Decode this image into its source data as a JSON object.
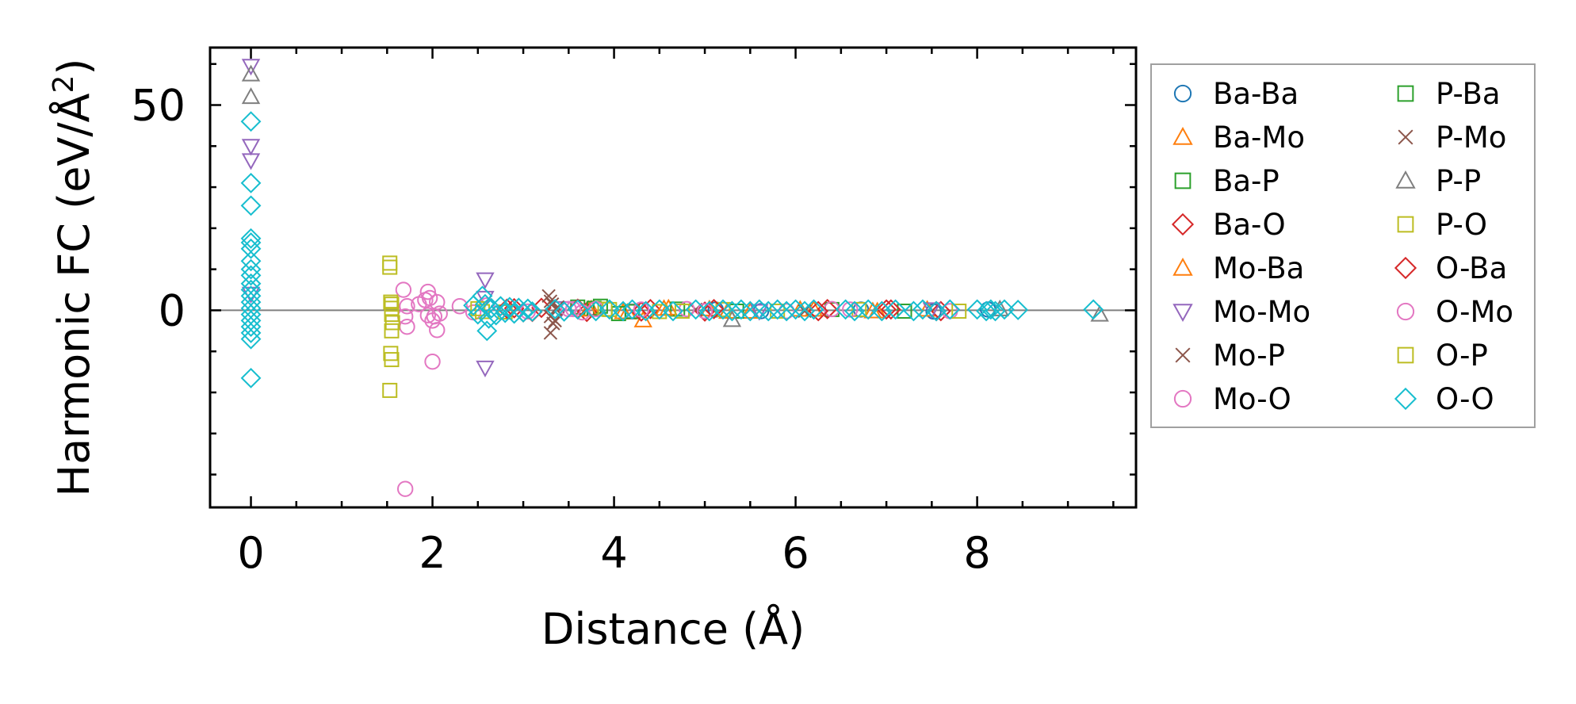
{
  "chart_data": {
    "type": "scatter",
    "title": "",
    "xlabel": "Distance (Å)",
    "ylabel_main": "Harmonic FC (eV/Å",
    "ylabel_sup": "2",
    "ylabel_close": ")",
    "xlim": [
      -0.45,
      9.75
    ],
    "ylim": [
      -48,
      64
    ],
    "x_ticks": [
      0,
      2,
      4,
      6,
      8
    ],
    "x_tick_labels": [
      "0",
      "2",
      "4",
      "6",
      "8"
    ],
    "y_ticks": [
      0,
      50
    ],
    "y_tick_labels": [
      "0",
      "50"
    ],
    "zero_line": true,
    "grid": false,
    "legend_position": "outside-right",
    "series": [
      {
        "name": "Ba-Ba",
        "marker": "circle",
        "color": "#1f77b4",
        "points": [
          [
            5.12,
            0.2
          ],
          [
            5.62,
            -0.2
          ],
          [
            6.72,
            0.2
          ],
          [
            7.52,
            -0.3
          ],
          [
            8.12,
            0.2
          ]
        ]
      },
      {
        "name": "Ba-Mo",
        "marker": "triangle-up",
        "color": "#ff7f0e",
        "points": [
          [
            3.75,
            0.3
          ],
          [
            4.1,
            -0.4
          ],
          [
            4.32,
            -2.4
          ],
          [
            4.6,
            0.5
          ],
          [
            5.05,
            0.3
          ],
          [
            5.5,
            -0.3
          ],
          [
            6.2,
            0.2
          ],
          [
            6.9,
            -0.2
          ],
          [
            7.45,
            0.2
          ]
        ]
      },
      {
        "name": "Ba-P",
        "marker": "square",
        "color": "#2ca02c",
        "points": [
          [
            3.6,
            0.8
          ],
          [
            3.85,
            1.0
          ],
          [
            4.05,
            -0.8
          ],
          [
            4.7,
            0.3
          ],
          [
            5.35,
            -0.2
          ],
          [
            6.4,
            0.2
          ],
          [
            7.2,
            -0.2
          ]
        ]
      },
      {
        "name": "Ba-O",
        "marker": "diamond",
        "color": "#d62728",
        "points": [
          [
            2.9,
            0.5
          ],
          [
            3.0,
            -0.5
          ],
          [
            3.2,
            0.6
          ],
          [
            3.7,
            -0.4
          ],
          [
            4.4,
            0.3
          ],
          [
            5.0,
            -0.3
          ],
          [
            6.35,
            0.3
          ],
          [
            7.0,
            0.2
          ],
          [
            7.6,
            -0.2
          ]
        ]
      },
      {
        "name": "Mo-Ba",
        "marker": "triangle-up",
        "color": "#ff7f0e",
        "points": [
          [
            3.72,
            0.2
          ],
          [
            4.15,
            -0.5
          ],
          [
            4.55,
            0.4
          ],
          [
            5.25,
            -0.3
          ],
          [
            6.05,
            0.2
          ],
          [
            6.85,
            -0.2
          ]
        ]
      },
      {
        "name": "Mo-Mo",
        "marker": "triangle-down",
        "color": "#9467bd",
        "points": [
          [
            0,
            59.5
          ],
          [
            0,
            40
          ],
          [
            0,
            36.5
          ],
          [
            0,
            4
          ],
          [
            2.58,
            7.5
          ],
          [
            2.58,
            3
          ],
          [
            2.58,
            -14
          ],
          [
            3.42,
            0.5
          ],
          [
            5.6,
            -0.2
          ],
          [
            7.5,
            0.2
          ]
        ]
      },
      {
        "name": "Mo-P",
        "marker": "x",
        "color": "#8c564b",
        "points": [
          [
            3.28,
            3.5
          ],
          [
            3.3,
            -5.5
          ],
          [
            3.32,
            1.5
          ],
          [
            3.35,
            -2.5
          ],
          [
            3.38,
            0.8
          ],
          [
            3.3,
            -1.5
          ],
          [
            4.9,
            0.2
          ],
          [
            6.1,
            -0.2
          ]
        ]
      },
      {
        "name": "Mo-O",
        "marker": "circle",
        "color": "#e377c2",
        "points": [
          [
            1.68,
            5
          ],
          [
            1.7,
            -1.5
          ],
          [
            1.72,
            -4
          ],
          [
            1.85,
            1.5
          ],
          [
            1.95,
            4.5
          ],
          [
            1.97,
            3
          ],
          [
            2.0,
            -12.5
          ],
          [
            2.0,
            -2.5
          ],
          [
            1.95,
            -1.2
          ],
          [
            2.05,
            2
          ],
          [
            2.05,
            -4.8
          ],
          [
            2.08,
            -0.8
          ],
          [
            2.3,
            1
          ],
          [
            2.45,
            -0.5
          ],
          [
            2.6,
            1.2
          ],
          [
            3.05,
            -0.3
          ],
          [
            3.55,
            0.3
          ],
          [
            4.2,
            -0.3
          ],
          [
            4.8,
            0.3
          ],
          [
            5.9,
            -0.2
          ],
          [
            6.4,
            0.3
          ],
          [
            7.7,
            -0.2
          ],
          [
            1.7,
            -43.5
          ]
        ]
      },
      {
        "name": "P-Ba",
        "marker": "square",
        "color": "#2ca02c",
        "points": [
          [
            3.78,
            0.5
          ],
          [
            4.2,
            -0.3
          ]
        ]
      },
      {
        "name": "P-Mo",
        "marker": "x",
        "color": "#8c564b",
        "points": [
          [
            3.3,
            2.2
          ],
          [
            3.33,
            -3.2
          ],
          [
            3.36,
            0.3
          ]
        ]
      },
      {
        "name": "P-P",
        "marker": "triangle-up",
        "color": "#7f7f7f",
        "points": [
          [
            0,
            57.5
          ],
          [
            0,
            52
          ],
          [
            5.3,
            -2.3
          ],
          [
            9.35,
            -1
          ],
          [
            8.25,
            0.3
          ]
        ]
      },
      {
        "name": "P-O",
        "marker": "square",
        "color": "#bcbd22",
        "points": [
          [
            1.53,
            11.5
          ],
          [
            1.53,
            10.5
          ],
          [
            1.54,
            2
          ],
          [
            1.55,
            0.5
          ],
          [
            1.55,
            -1
          ],
          [
            1.56,
            -3
          ],
          [
            1.54,
            -10.5
          ],
          [
            1.55,
            -12
          ],
          [
            1.53,
            -19.5
          ],
          [
            2.5,
            0.4
          ],
          [
            2.8,
            -0.4
          ],
          [
            3.9,
            0.3
          ],
          [
            4.5,
            -0.3
          ],
          [
            5.2,
            0.2
          ],
          [
            5.8,
            -0.2
          ],
          [
            6.7,
            0.2
          ],
          [
            7.8,
            -0.2
          ]
        ]
      },
      {
        "name": "O-Ba",
        "marker": "diamond",
        "color": "#d62728",
        "points": [
          [
            2.82,
            0.4
          ],
          [
            3.1,
            -0.4
          ],
          [
            3.6,
            0.4
          ],
          [
            4.3,
            -0.3
          ],
          [
            5.1,
            0.3
          ],
          [
            6.25,
            -0.2
          ],
          [
            7.05,
            0.2
          ],
          [
            7.55,
            -0.2
          ]
        ]
      },
      {
        "name": "O-Mo",
        "marker": "circle",
        "color": "#e377c2",
        "points": [
          [
            1.72,
            1
          ],
          [
            1.92,
            2.5
          ],
          [
            2.02,
            -1.5
          ],
          [
            3.5,
            0.3
          ],
          [
            3.65,
            -0.5
          ],
          [
            3.8,
            0.3
          ],
          [
            4.3,
            0.2
          ],
          [
            5.0,
            -0.2
          ],
          [
            6.6,
            0.2
          ]
        ]
      },
      {
        "name": "O-P",
        "marker": "square",
        "color": "#bcbd22",
        "points": [
          [
            1.55,
            -5
          ],
          [
            1.55,
            1.5
          ],
          [
            2.55,
            -0.3
          ],
          [
            3.95,
            0.2
          ],
          [
            4.75,
            -0.2
          ]
        ]
      },
      {
        "name": "O-O",
        "marker": "diamond",
        "color": "#17becf",
        "points": [
          [
            0,
            46
          ],
          [
            0,
            31
          ],
          [
            0,
            25.5
          ],
          [
            0,
            17.5
          ],
          [
            0,
            16.5
          ],
          [
            0,
            15
          ],
          [
            0,
            12
          ],
          [
            0,
            10
          ],
          [
            0,
            8.5
          ],
          [
            0,
            6.5
          ],
          [
            0,
            5
          ],
          [
            0,
            3.5
          ],
          [
            0,
            2
          ],
          [
            0,
            0.5
          ],
          [
            0,
            -1
          ],
          [
            0,
            -2.5
          ],
          [
            0,
            -4
          ],
          [
            0,
            -5.5
          ],
          [
            0,
            -7
          ],
          [
            0,
            -16.5
          ],
          [
            2.45,
            1.2
          ],
          [
            2.5,
            -1
          ],
          [
            2.55,
            3.5
          ],
          [
            2.58,
            1.5
          ],
          [
            2.6,
            -5
          ],
          [
            2.62,
            -2
          ],
          [
            2.65,
            0.5
          ],
          [
            2.7,
            -1.2
          ],
          [
            2.75,
            1
          ],
          [
            2.8,
            -0.6
          ],
          [
            2.85,
            0.8
          ],
          [
            2.9,
            -0.8
          ],
          [
            2.95,
            0.6
          ],
          [
            3.0,
            -0.5
          ],
          [
            3.05,
            0.4
          ],
          [
            3.1,
            -0.3
          ],
          [
            3.35,
            0.3
          ],
          [
            3.45,
            -0.3
          ],
          [
            3.6,
            0.2
          ],
          [
            3.8,
            -0.2
          ],
          [
            3.95,
            0.2
          ],
          [
            4.1,
            -0.2
          ],
          [
            4.2,
            0.2
          ],
          [
            4.35,
            -0.2
          ],
          [
            4.5,
            0.2
          ],
          [
            4.65,
            -0.2
          ],
          [
            4.9,
            0.2
          ],
          [
            5.05,
            -0.2
          ],
          [
            5.2,
            0.2
          ],
          [
            5.3,
            -0.2
          ],
          [
            5.4,
            0.2
          ],
          [
            5.5,
            -0.2
          ],
          [
            5.6,
            0.2
          ],
          [
            5.7,
            -0.2
          ],
          [
            5.8,
            0.2
          ],
          [
            5.9,
            -0.2
          ],
          [
            6.0,
            0.2
          ],
          [
            6.1,
            -0.2
          ],
          [
            6.2,
            0.2
          ],
          [
            6.55,
            0.2
          ],
          [
            6.65,
            -0.2
          ],
          [
            6.8,
            0.2
          ],
          [
            6.95,
            -0.2
          ],
          [
            7.1,
            0.2
          ],
          [
            7.3,
            -0.2
          ],
          [
            7.4,
            0.2
          ],
          [
            7.55,
            -0.2
          ],
          [
            7.7,
            0.2
          ],
          [
            8.0,
            0.2
          ],
          [
            8.1,
            -0.2
          ],
          [
            8.15,
            0.2
          ],
          [
            8.2,
            -0.2
          ],
          [
            8.3,
            0.2
          ],
          [
            8.45,
            0.1
          ],
          [
            9.28,
            0.2
          ]
        ]
      }
    ]
  }
}
